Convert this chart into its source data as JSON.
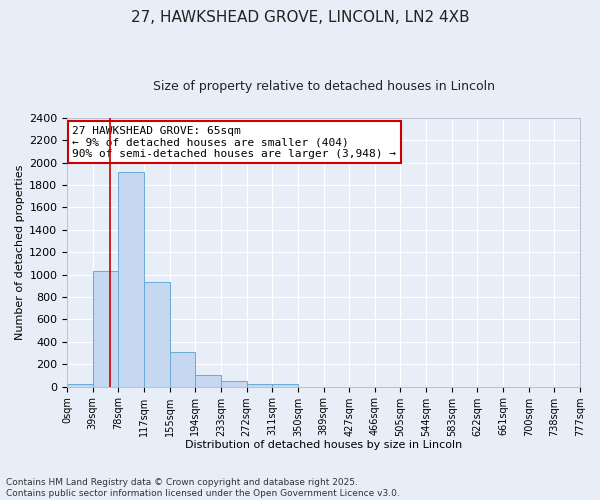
{
  "title_line1": "27, HAWKSHEAD GROVE, LINCOLN, LN2 4XB",
  "title_line2": "Size of property relative to detached houses in Lincoln",
  "xlabel": "Distribution of detached houses by size in Lincoln",
  "ylabel": "Number of detached properties",
  "annotation_title": "27 HAWKSHEAD GROVE: 65sqm",
  "annotation_line2": "← 9% of detached houses are smaller (404)",
  "annotation_line3": "90% of semi-detached houses are larger (3,948) →",
  "footer_line1": "Contains HM Land Registry data © Crown copyright and database right 2025.",
  "footer_line2": "Contains public sector information licensed under the Open Government Licence v3.0.",
  "bin_labels": [
    "0sqm",
    "39sqm",
    "78sqm",
    "117sqm",
    "155sqm",
    "194sqm",
    "233sqm",
    "272sqm",
    "311sqm",
    "350sqm",
    "389sqm",
    "427sqm",
    "466sqm",
    "505sqm",
    "544sqm",
    "583sqm",
    "622sqm",
    "661sqm",
    "700sqm",
    "738sqm",
    "777sqm"
  ],
  "bar_values": [
    20,
    1030,
    1920,
    930,
    310,
    105,
    50,
    25,
    20,
    0,
    0,
    0,
    0,
    0,
    0,
    0,
    0,
    0,
    0,
    0
  ],
  "bar_color": "#c5d8f0",
  "bar_edge_color": "#6aaad4",
  "red_line_x": 1.67,
  "ylim": [
    0,
    2400
  ],
  "yticks": [
    0,
    200,
    400,
    600,
    800,
    1000,
    1200,
    1400,
    1600,
    1800,
    2000,
    2200,
    2400
  ],
  "background_color": "#e8eef8",
  "plot_bg_color": "#e8eef8",
  "grid_color": "#ffffff",
  "annotation_box_color": "#ffffff",
  "annotation_box_edge": "#cc0000",
  "red_line_color": "#cc0000",
  "title_fontsize": 11,
  "subtitle_fontsize": 9,
  "ylabel_fontsize": 8,
  "xlabel_fontsize": 8,
  "tick_fontsize": 8,
  "xtick_fontsize": 7,
  "footer_fontsize": 6.5,
  "annotation_fontsize": 8
}
